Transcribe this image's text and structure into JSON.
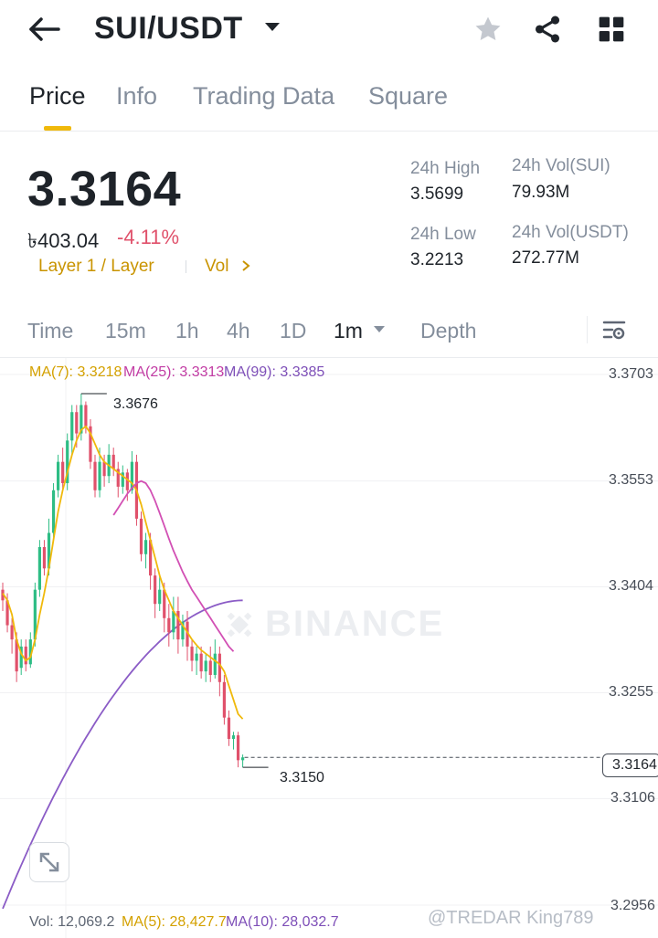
{
  "header": {
    "pair": "SUI/USDT",
    "icons": [
      "back-arrow-icon",
      "caret-down-icon",
      "star-icon",
      "share-icon",
      "grid-icon"
    ]
  },
  "tabs": [
    {
      "label": "Price",
      "active": true
    },
    {
      "label": "Info",
      "active": false
    },
    {
      "label": "Trading Data",
      "active": false
    },
    {
      "label": "Square",
      "active": false
    }
  ],
  "price": {
    "last": "3.3164",
    "fiat": "৳403.04",
    "change": "-4.11%",
    "tag_layer": "Layer 1 / Layer",
    "tag_vol": "Vol",
    "stats": {
      "high_label": "24h High",
      "high_value": "3.5699",
      "low_label": "24h Low",
      "low_value": "3.2213",
      "vol_base_label": "24h Vol(SUI)",
      "vol_base_value": "79.93M",
      "vol_quote_label": "24h Vol(USDT)",
      "vol_quote_value": "272.77M"
    }
  },
  "intervals": [
    {
      "label": "Time",
      "active": false
    },
    {
      "label": "15m",
      "active": false
    },
    {
      "label": "1h",
      "active": false
    },
    {
      "label": "4h",
      "active": false
    },
    {
      "label": "1D",
      "active": false
    },
    {
      "label": "1m",
      "active": true
    },
    {
      "label": "Depth",
      "active": false
    }
  ],
  "colors": {
    "up": "#2ebd85",
    "down": "#e0516b",
    "ma7": "#f0b90b",
    "ma25": "#d250b4",
    "ma99": "#8b5cc6",
    "accent": "#f0b90b"
  },
  "chart": {
    "ma_legend": {
      "ma7": "MA(7): 3.3218",
      "ma25": "MA(25): 3.3313",
      "ma99": "MA(99): 3.3385"
    },
    "y_axis": [
      "3.3703",
      "3.3553",
      "3.3404",
      "3.3255",
      "3.3106",
      "3.2956"
    ],
    "high_marker": "3.3676",
    "low_marker": "3.3150",
    "current_price_tag": "3.3164",
    "watermark": "BINANCE",
    "vol_legend": {
      "vol": "Vol: 12,069.2",
      "ma5": "MA(5): 28,427.7",
      "ma10": "MA(10): 28,032.7"
    },
    "user_watermark": "@TREDAR King789"
  },
  "chart_data": {
    "type": "candlestick",
    "interval": "1m",
    "y_ticks": [
      3.3703,
      3.3553,
      3.3404,
      3.3255,
      3.3106,
      3.2956
    ],
    "ylim": [
      3.2956,
      3.3703
    ],
    "high": 3.3676,
    "low": 3.315,
    "last": 3.3164,
    "candles": [
      {
        "o": 3.34,
        "c": 3.3385,
        "h": 3.341,
        "l": 3.337
      },
      {
        "o": 3.3385,
        "c": 3.335,
        "h": 3.3395,
        "l": 3.334
      },
      {
        "o": 3.335,
        "c": 3.333,
        "h": 3.336,
        "l": 3.331
      },
      {
        "o": 3.333,
        "c": 3.3285,
        "h": 3.334,
        "l": 3.327
      },
      {
        "o": 3.329,
        "c": 3.332,
        "h": 3.333,
        "l": 3.328
      },
      {
        "o": 3.332,
        "c": 3.3295,
        "h": 3.333,
        "l": 3.3285
      },
      {
        "o": 3.3295,
        "c": 3.333,
        "h": 3.334,
        "l": 3.329
      },
      {
        "o": 3.333,
        "c": 3.34,
        "h": 3.341,
        "l": 3.332
      },
      {
        "o": 3.34,
        "c": 3.346,
        "h": 3.347,
        "l": 3.339
      },
      {
        "o": 3.346,
        "c": 3.343,
        "h": 3.347,
        "l": 3.342
      },
      {
        "o": 3.343,
        "c": 3.348,
        "h": 3.35,
        "l": 3.342
      },
      {
        "o": 3.348,
        "c": 3.354,
        "h": 3.355,
        "l": 3.347
      },
      {
        "o": 3.354,
        "c": 3.358,
        "h": 3.359,
        "l": 3.353
      },
      {
        "o": 3.358,
        "c": 3.355,
        "h": 3.36,
        "l": 3.354
      },
      {
        "o": 3.355,
        "c": 3.361,
        "h": 3.362,
        "l": 3.354
      },
      {
        "o": 3.361,
        "c": 3.365,
        "h": 3.366,
        "l": 3.359
      },
      {
        "o": 3.365,
        "c": 3.362,
        "h": 3.366,
        "l": 3.36
      },
      {
        "o": 3.362,
        "c": 3.366,
        "h": 3.3676,
        "l": 3.361
      },
      {
        "o": 3.366,
        "c": 3.363,
        "h": 3.3665,
        "l": 3.362
      },
      {
        "o": 3.363,
        "c": 3.358,
        "h": 3.364,
        "l": 3.357
      },
      {
        "o": 3.358,
        "c": 3.354,
        "h": 3.359,
        "l": 3.353
      },
      {
        "o": 3.354,
        "c": 3.358,
        "h": 3.36,
        "l": 3.353
      },
      {
        "o": 3.358,
        "c": 3.356,
        "h": 3.359,
        "l": 3.3545
      },
      {
        "o": 3.356,
        "c": 3.359,
        "h": 3.3605,
        "l": 3.355
      },
      {
        "o": 3.359,
        "c": 3.357,
        "h": 3.36,
        "l": 3.356
      },
      {
        "o": 3.357,
        "c": 3.3545,
        "h": 3.358,
        "l": 3.353
      },
      {
        "o": 3.3545,
        "c": 3.3565,
        "h": 3.3575,
        "l": 3.3535
      },
      {
        "o": 3.3565,
        "c": 3.354,
        "h": 3.357,
        "l": 3.3525
      },
      {
        "o": 3.354,
        "c": 3.358,
        "h": 3.3595,
        "l": 3.3535
      },
      {
        "o": 3.358,
        "c": 3.35,
        "h": 3.359,
        "l": 3.349
      },
      {
        "o": 3.35,
        "c": 3.345,
        "h": 3.351,
        "l": 3.344
      },
      {
        "o": 3.345,
        "c": 3.347,
        "h": 3.348,
        "l": 3.343
      },
      {
        "o": 3.347,
        "c": 3.342,
        "h": 3.348,
        "l": 3.34
      },
      {
        "o": 3.342,
        "c": 3.338,
        "h": 3.343,
        "l": 3.336
      },
      {
        "o": 3.338,
        "c": 3.34,
        "h": 3.342,
        "l": 3.337
      },
      {
        "o": 3.34,
        "c": 3.336,
        "h": 3.341,
        "l": 3.334
      },
      {
        "o": 3.336,
        "c": 3.334,
        "h": 3.338,
        "l": 3.332
      },
      {
        "o": 3.334,
        "c": 3.337,
        "h": 3.339,
        "l": 3.333
      },
      {
        "o": 3.337,
        "c": 3.333,
        "h": 3.339,
        "l": 3.331
      },
      {
        "o": 3.333,
        "c": 3.3355,
        "h": 3.3365,
        "l": 3.332
      },
      {
        "o": 3.3355,
        "c": 3.332,
        "h": 3.337,
        "l": 3.33
      },
      {
        "o": 3.332,
        "c": 3.33,
        "h": 3.333,
        "l": 3.3285
      },
      {
        "o": 3.33,
        "c": 3.331,
        "h": 3.332,
        "l": 3.328
      },
      {
        "o": 3.331,
        "c": 3.3285,
        "h": 3.332,
        "l": 3.3275
      },
      {
        "o": 3.3285,
        "c": 3.33,
        "h": 3.331,
        "l": 3.327
      },
      {
        "o": 3.33,
        "c": 3.328,
        "h": 3.332,
        "l": 3.327
      },
      {
        "o": 3.328,
        "c": 3.331,
        "h": 3.333,
        "l": 3.3275
      },
      {
        "o": 3.331,
        "c": 3.327,
        "h": 3.332,
        "l": 3.325
      },
      {
        "o": 3.327,
        "c": 3.322,
        "h": 3.328,
        "l": 3.321
      },
      {
        "o": 3.322,
        "c": 3.319,
        "h": 3.323,
        "l": 3.318
      },
      {
        "o": 3.319,
        "c": 3.3195,
        "h": 3.32,
        "l": 3.3175
      },
      {
        "o": 3.3195,
        "c": 3.316,
        "h": 3.32,
        "l": 3.315
      },
      {
        "o": 3.316,
        "c": 3.3164,
        "h": 3.3168,
        "l": 3.315
      }
    ],
    "ma7": [
      3.3395,
      3.3385,
      3.3365,
      3.333,
      3.331,
      3.33,
      3.3305,
      3.333,
      3.3365,
      3.3395,
      3.343,
      3.347,
      3.351,
      3.354,
      3.3565,
      3.359,
      3.361,
      3.3625,
      3.363,
      3.362,
      3.3605,
      3.359,
      3.358,
      3.3575,
      3.357,
      3.3565,
      3.356,
      3.3555,
      3.355,
      3.354,
      3.352,
      3.3495,
      3.347,
      3.3445,
      3.342,
      3.34,
      3.3385,
      3.337,
      3.336,
      3.335,
      3.334,
      3.333,
      3.3322,
      3.3315,
      3.331,
      3.3305,
      3.33,
      3.3295,
      3.3285,
      3.3265,
      3.3245,
      3.3225,
      3.3218
    ],
    "ma25": [
      null,
      null,
      null,
      null,
      null,
      null,
      null,
      null,
      null,
      null,
      null,
      null,
      null,
      null,
      null,
      null,
      null,
      null,
      null,
      null,
      null,
      null,
      null,
      null,
      3.3505,
      3.3515,
      3.3525,
      3.3535,
      3.3543,
      3.355,
      3.3553,
      3.355,
      3.354,
      3.3525,
      3.3508,
      3.349,
      3.3472,
      3.3455,
      3.344,
      3.3425,
      3.3412,
      3.34,
      3.339,
      3.338,
      3.337,
      3.336,
      3.335,
      3.334,
      3.333,
      3.332,
      3.3313,
      null,
      null
    ],
    "ma99_trend": "rising from below visible range to 3.3385"
  }
}
